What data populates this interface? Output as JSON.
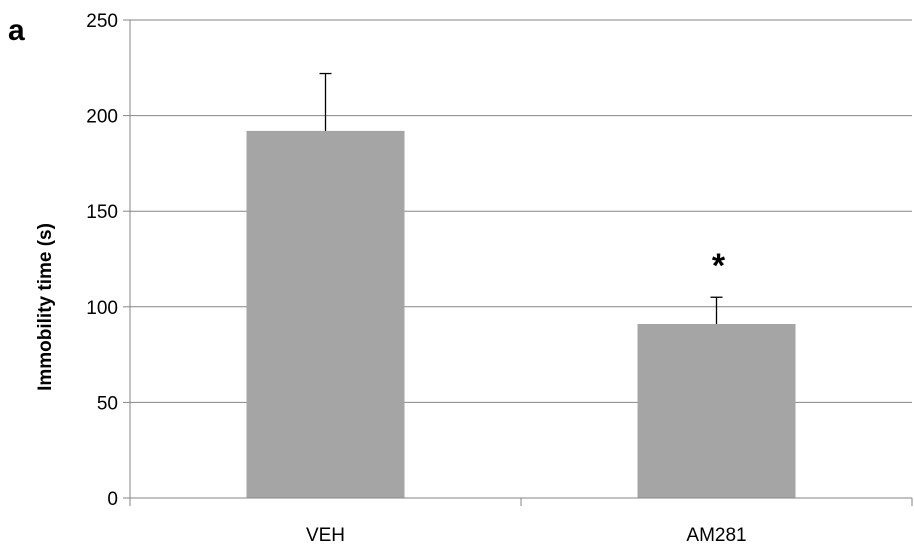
{
  "panel_label": "a",
  "chart_data": {
    "type": "bar",
    "categories": [
      "VEH",
      "AM281"
    ],
    "values": [
      192,
      91
    ],
    "errors": [
      30,
      14
    ],
    "annotations": [
      {
        "category": "AM281",
        "text": "*"
      }
    ],
    "title": "",
    "xlabel": "",
    "ylabel": "Immobility time (s)",
    "ylim": [
      0,
      250
    ],
    "yticks": [
      0,
      50,
      100,
      150,
      200,
      250
    ],
    "grid": true,
    "bar_color": "#a5a5a5",
    "grid_color": "#868686",
    "legend": "none"
  }
}
